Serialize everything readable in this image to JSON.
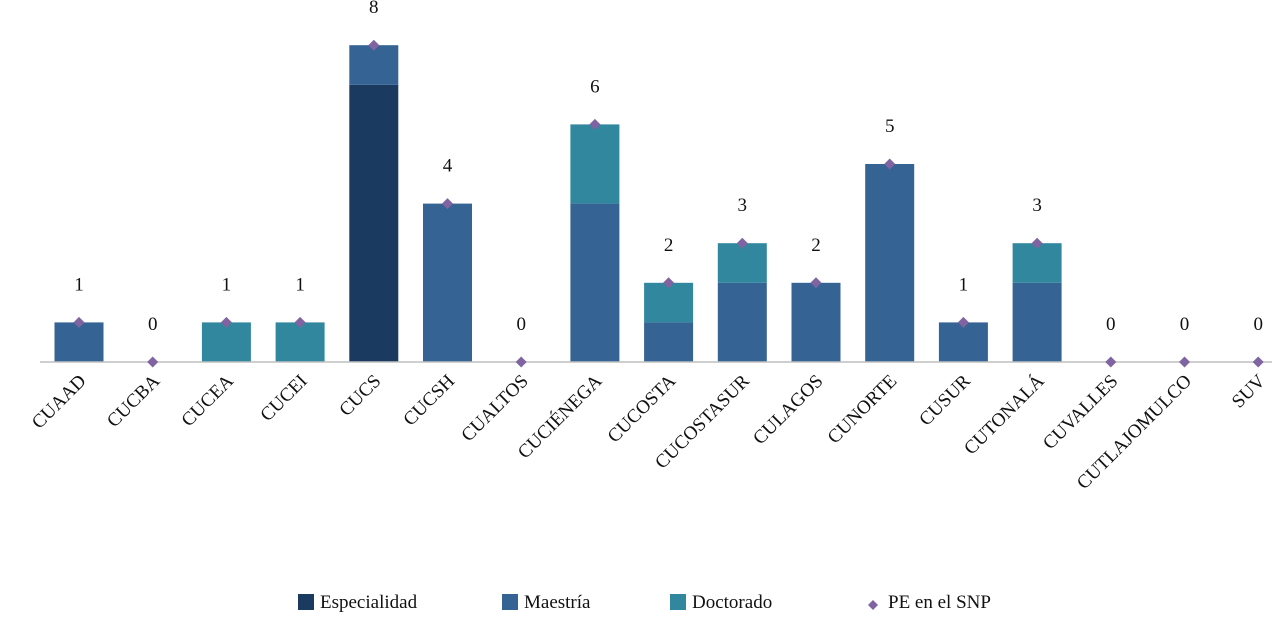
{
  "chart_data": {
    "type": "bar",
    "stacked": true,
    "categories": [
      "CUAAD",
      "CUCBA",
      "CUCEA",
      "CUCEI",
      "CUCS",
      "CUCSH",
      "CUALTOS",
      "CUCIÉNEGA",
      "CUCOSTA",
      "CUCOSTASUR",
      "CULAGOS",
      "CUNORTE",
      "CUSUR",
      "CUTONALÁ",
      "CUVALLES",
      "CUTLAJOMULCO",
      "SUV"
    ],
    "series": [
      {
        "name": "Especialidad",
        "color": "#1b3a5f",
        "values": [
          0,
          0,
          0,
          0,
          7,
          0,
          0,
          0,
          0,
          0,
          0,
          0,
          0,
          0,
          0,
          0,
          0
        ]
      },
      {
        "name": "Maestría",
        "color": "#356393",
        "values": [
          1,
          0,
          0,
          0,
          1,
          4,
          0,
          4,
          1,
          2,
          2,
          5,
          1,
          2,
          0,
          0,
          0
        ]
      },
      {
        "name": "Doctorado",
        "color": "#31879e",
        "values": [
          0,
          0,
          1,
          1,
          0,
          0,
          0,
          2,
          1,
          1,
          0,
          0,
          0,
          1,
          0,
          0,
          0
        ]
      }
    ],
    "markers": {
      "name": "PE en el SNP",
      "color": "#8064a2",
      "values": [
        1,
        0,
        1,
        1,
        8,
        4,
        0,
        6,
        2,
        3,
        2,
        5,
        1,
        3,
        0,
        0,
        0
      ]
    },
    "data_labels": [
      "1",
      "0",
      "1",
      "1",
      "8",
      "4",
      "0",
      "6",
      "2",
      "3",
      "2",
      "5",
      "1",
      "3",
      "0",
      "0",
      "0"
    ],
    "ylim": [
      0,
      8
    ],
    "grid": false,
    "legend_position": "bottom"
  }
}
